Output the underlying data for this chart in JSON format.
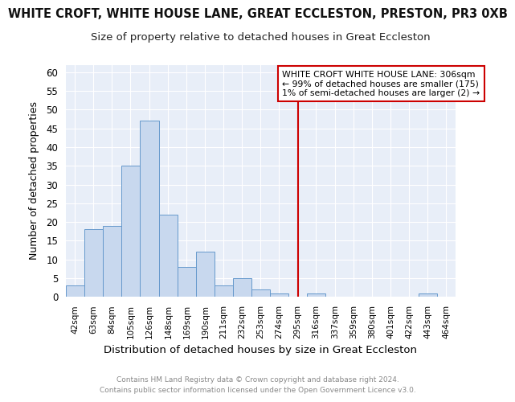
{
  "title": "WHITE CROFT, WHITE HOUSE LANE, GREAT ECCLESTON, PRESTON, PR3 0XB",
  "subtitle": "Size of property relative to detached houses in Great Eccleston",
  "xlabel": "Distribution of detached houses by size in Great Eccleston",
  "ylabel": "Number of detached properties",
  "footer_line1": "Contains HM Land Registry data © Crown copyright and database right 2024.",
  "footer_line2": "Contains public sector information licensed under the Open Government Licence v3.0.",
  "bin_labels": [
    "42sqm",
    "63sqm",
    "84sqm",
    "105sqm",
    "126sqm",
    "148sqm",
    "169sqm",
    "190sqm",
    "211sqm",
    "232sqm",
    "253sqm",
    "274sqm",
    "295sqm",
    "316sqm",
    "337sqm",
    "359sqm",
    "380sqm",
    "401sqm",
    "422sqm",
    "443sqm",
    "464sqm"
  ],
  "bar_values": [
    3,
    18,
    19,
    35,
    47,
    22,
    8,
    12,
    3,
    5,
    2,
    1,
    0,
    1,
    0,
    0,
    0,
    0,
    0,
    1,
    0
  ],
  "bar_color": "#c8d8ee",
  "bar_edge_color": "#6699cc",
  "axes_bg_color": "#e8eef8",
  "grid_color": "#ffffff",
  "vline_color": "#cc0000",
  "annotation_title": "WHITE CROFT WHITE HOUSE LANE: 306sqm",
  "annotation_line1": "← 99% of detached houses are smaller (175)",
  "annotation_line2": "1% of semi-detached houses are larger (2) →",
  "annotation_box_color": "#ffffff",
  "annotation_box_edge": "#cc0000",
  "ylim": [
    0,
    62
  ],
  "yticks": [
    0,
    5,
    10,
    15,
    20,
    25,
    30,
    35,
    40,
    45,
    50,
    55,
    60
  ],
  "bin_edges": [
    42,
    63,
    84,
    105,
    126,
    148,
    169,
    190,
    211,
    232,
    253,
    274,
    295,
    316,
    337,
    359,
    380,
    401,
    422,
    443,
    464,
    485
  ],
  "title_fontsize": 10.5,
  "subtitle_fontsize": 9.5,
  "xlabel_fontsize": 9.5,
  "ylabel_fontsize": 9
}
